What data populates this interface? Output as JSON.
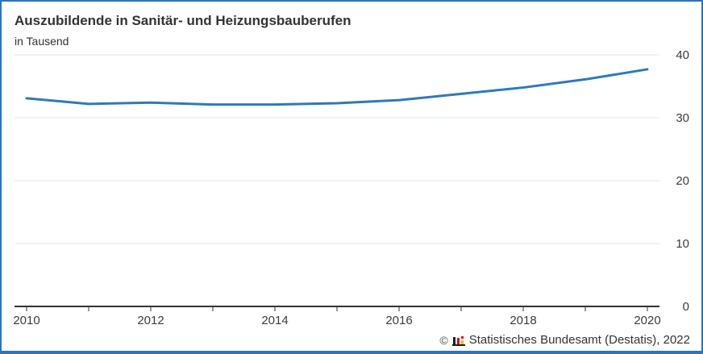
{
  "chart": {
    "title": "Auszubildende in Sanitär- und Heizungsbauberufen",
    "subtitle": "in Tausend"
  },
  "chart_data": {
    "type": "line",
    "title": "Auszubildende in Sanitär- und Heizungsbauberufen",
    "subtitle": "in Tausend",
    "x": [
      2010,
      2011,
      2012,
      2013,
      2014,
      2015,
      2016,
      2017,
      2018,
      2019,
      2020
    ],
    "x_tick_labels": [
      "2010",
      "",
      "2012",
      "",
      "2014",
      "",
      "2016",
      "",
      "2018",
      "",
      "2020"
    ],
    "values": [
      33.1,
      32.2,
      32.4,
      32.1,
      32.1,
      32.3,
      32.8,
      33.8,
      34.8,
      36.1,
      37.7
    ],
    "series_name": "Auszubildende in Tausend",
    "ylim": [
      0,
      40
    ],
    "y_ticks": [
      0,
      10,
      20,
      30,
      40
    ],
    "grid": "horizontal",
    "legend": "none"
  },
  "footer": {
    "copyright": "©",
    "source": "Statistisches Bundesamt (Destatis), 2022",
    "logo_icon": "destatis-bar-chart-logo"
  },
  "colors": {
    "line": "#2e79bd",
    "border": "#2e74b5",
    "grid": "#e4e4e4",
    "axis": "#333333",
    "tick": "#333333",
    "text": "#3c3c3c",
    "logo_black": "#1d1d1b",
    "logo_red": "#e2001a",
    "logo_gold": "#f6b800"
  }
}
